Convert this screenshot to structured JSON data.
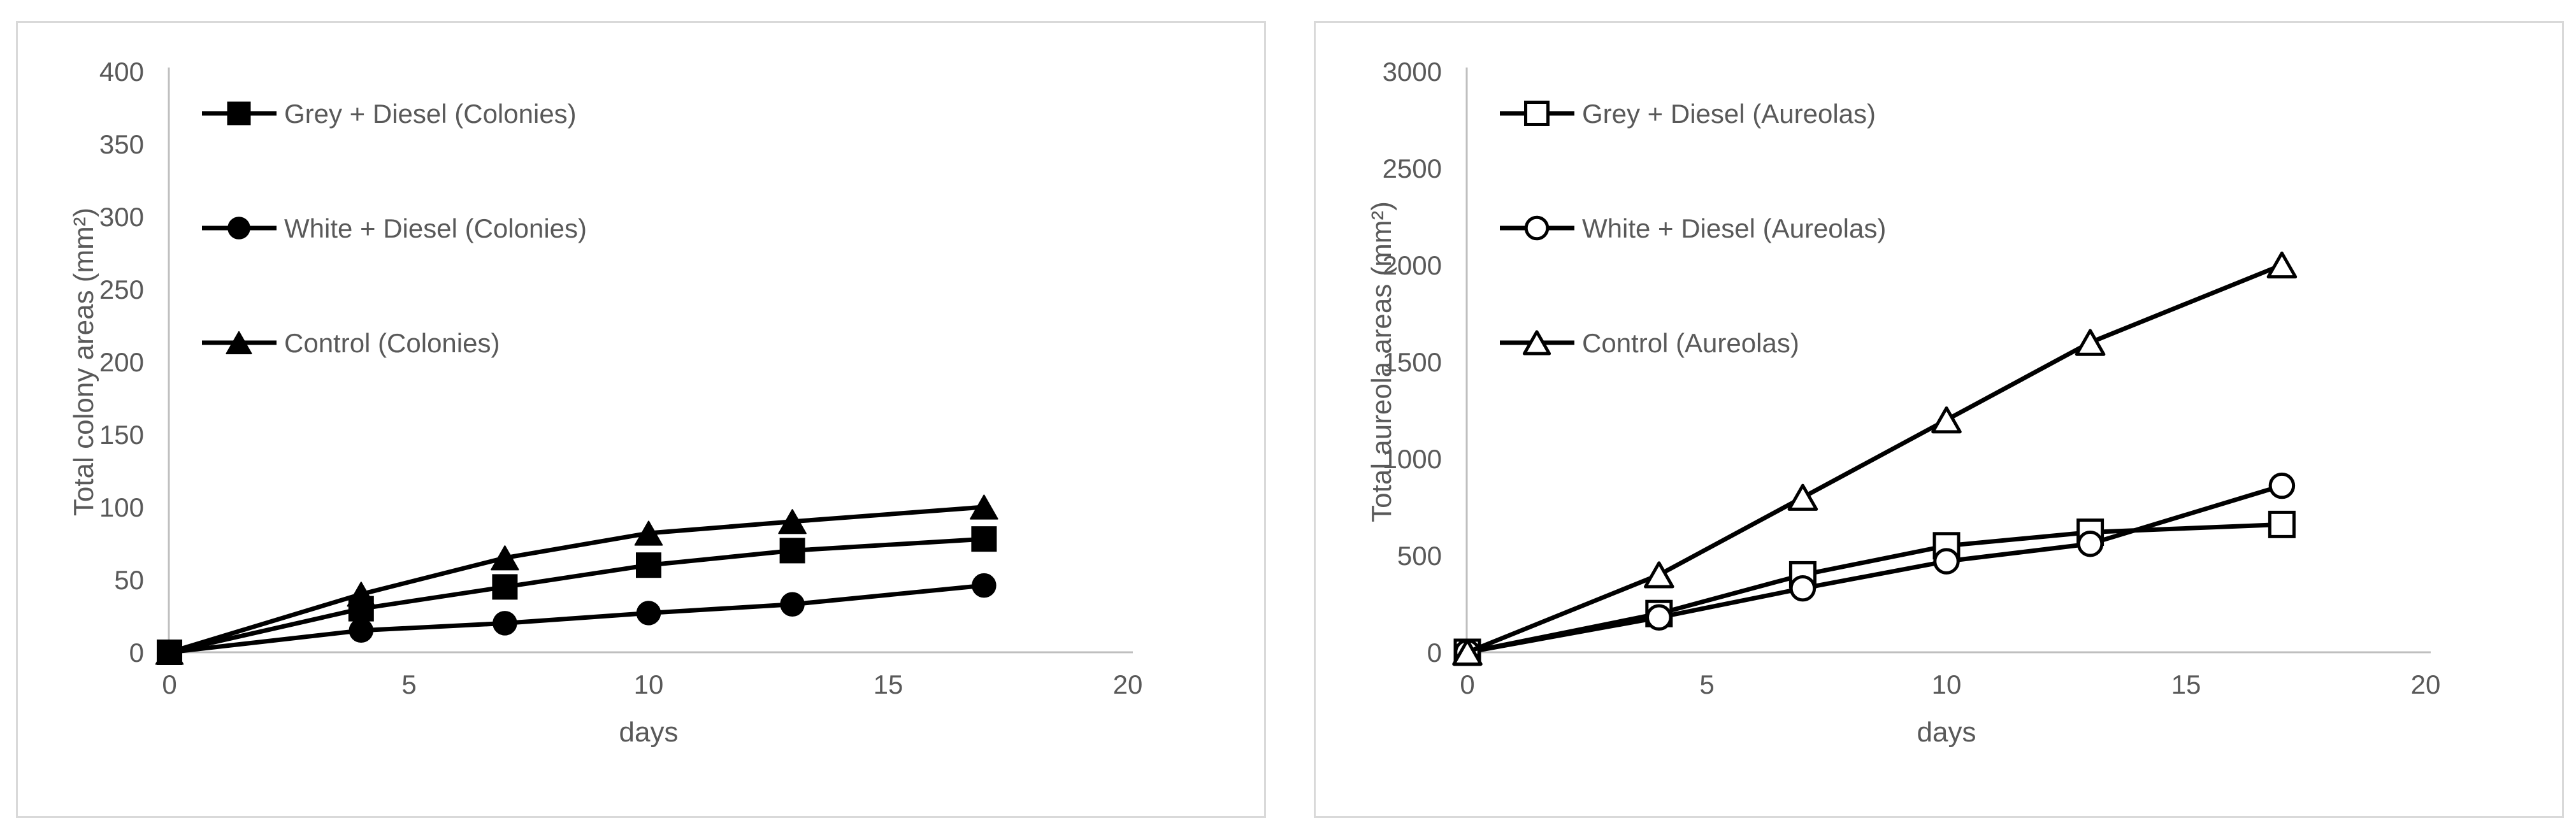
{
  "page": {
    "background_color": "#ffffff",
    "panel_border_color": "#D9D9D9",
    "axis_line_color": "#BFBFBF",
    "text_color": "#595959",
    "series_line_color": "#000000"
  },
  "chart_data": [
    {
      "type": "line",
      "title": "",
      "xlabel": "days",
      "ylabel": "Total colony areas (mm²)",
      "x": [
        0,
        4,
        7,
        10,
        13,
        17
      ],
      "xlim": [
        0,
        20
      ],
      "xticks": [
        0,
        5,
        10,
        15,
        20
      ],
      "ylim": [
        0,
        400
      ],
      "yticks": [
        0,
        50,
        100,
        150,
        200,
        250,
        300,
        350,
        400
      ],
      "grid": false,
      "legend_position": "inside-upper-left",
      "series": [
        {
          "name": "Grey + Diesel (Colonies)",
          "marker": "square",
          "marker_fill": "filled",
          "values": [
            0,
            30,
            45,
            60,
            70,
            78
          ]
        },
        {
          "name": "White + Diesel (Colonies)",
          "marker": "circle",
          "marker_fill": "filled",
          "values": [
            0,
            15,
            20,
            27,
            33,
            46
          ]
        },
        {
          "name": "Control (Colonies)",
          "marker": "triangle",
          "marker_fill": "filled",
          "values": [
            0,
            40,
            65,
            82,
            90,
            100
          ]
        }
      ]
    },
    {
      "type": "line",
      "title": "",
      "xlabel": "days",
      "ylabel": "Total aureola areas (mm²)",
      "x": [
        0,
        4,
        7,
        10,
        13,
        17
      ],
      "xlim": [
        0,
        20
      ],
      "xticks": [
        0,
        5,
        10,
        15,
        20
      ],
      "ylim": [
        0,
        3000
      ],
      "yticks": [
        0,
        500,
        1000,
        1500,
        2000,
        2500,
        3000
      ],
      "grid": false,
      "legend_position": "inside-upper-left",
      "series": [
        {
          "name": "Grey + Diesel (Aureolas)",
          "marker": "square",
          "marker_fill": "open",
          "values": [
            0,
            200,
            400,
            550,
            620,
            660
          ]
        },
        {
          "name": "White + Diesel (Aureolas)",
          "marker": "circle",
          "marker_fill": "open",
          "values": [
            0,
            180,
            330,
            470,
            560,
            860
          ]
        },
        {
          "name": "Control (Aureolas)",
          "marker": "triangle",
          "marker_fill": "open",
          "values": [
            0,
            400,
            800,
            1200,
            1600,
            2000
          ]
        }
      ]
    }
  ]
}
